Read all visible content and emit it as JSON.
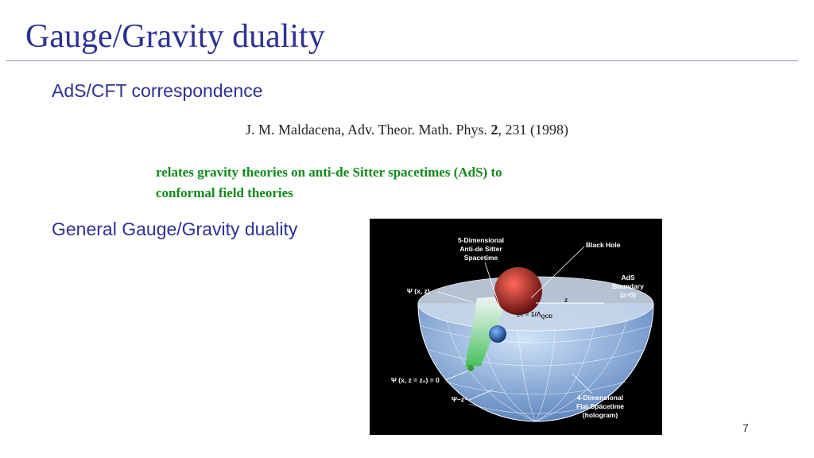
{
  "slide": {
    "title": "Gauge/Gravity duality",
    "heading_1": "AdS/CFT correspondence",
    "citation": {
      "authors": "J. M. Maldacena, Adv. Theor. Math. Phys.",
      "volume": "2",
      "rest": ", 231 (1998)"
    },
    "note_lines": [
      "relates gravity theories on anti-de Sitter spacetimes (AdS) to",
      "conformal field theories"
    ],
    "heading_2": "General Gauge/Gravity duality",
    "figure": {
      "labels": [
        "5-Dimensional",
        "Anti-de Sitter",
        "Spacetime",
        "Black Hole",
        "AdS",
        "Boundary",
        "(z=0)",
        "Ψ (x, z)",
        "z",
        "z₀ = 1/Λ",
        "QCD",
        "Ψ (x, z = z₀) = 0",
        "Ψ~z⁵",
        "4-Dimensional",
        "Flat Spacetime",
        "(hologram)"
      ]
    },
    "page_number": "7"
  }
}
